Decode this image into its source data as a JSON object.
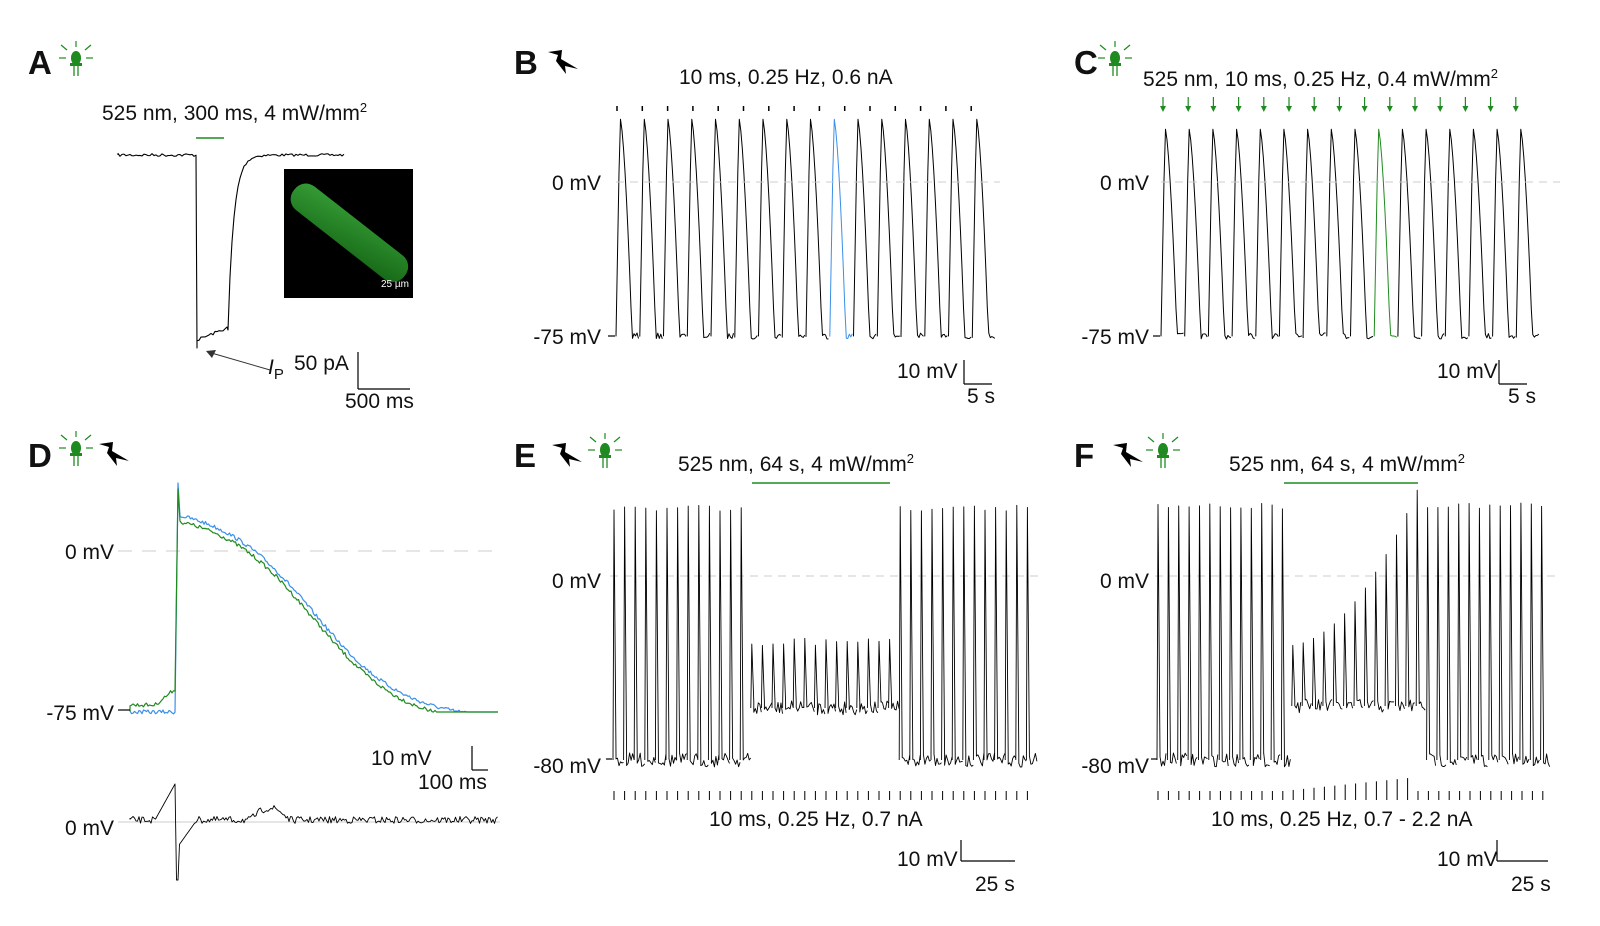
{
  "panels": {
    "A": {
      "letter": "A",
      "stim": "525 nm, 300 ms, 4 mW/mm",
      "stim_sup": "2",
      "current_label": "I",
      "current_sub": "P",
      "scale_y": "50 pA",
      "scale_x": "500 ms",
      "inset_scale": "25 µm"
    },
    "B": {
      "letter": "B",
      "stim": "10 ms, 0.25 Hz, 0.6 nA",
      "y_top": "0 mV",
      "y_bottom": "-75 mV",
      "scale_y": "10 mV",
      "scale_x": "5 s"
    },
    "C": {
      "letter": "C",
      "stim": "525 nm, 10 ms, 0.25 Hz, 0.4 mW/mm",
      "stim_sup": "2",
      "y_top": "0 mV",
      "y_bottom": "-75 mV",
      "scale_y": "10 mV",
      "scale_x": "5 s"
    },
    "D": {
      "letter": "D",
      "y_top": "0 mV",
      "y_bottom": "-75 mV",
      "y_diff": "0 mV",
      "scale_y": "10 mV",
      "scale_x": "100 ms"
    },
    "E": {
      "letter": "E",
      "stim_light": "525 nm, 64 s, 4 mW/mm",
      "stim_sup": "2",
      "stim_elec": "10 ms, 0.25 Hz, 0.7 nA",
      "y_top": "0 mV",
      "y_bottom": "-80 mV",
      "scale_y": "10 mV",
      "scale_x": "25 s"
    },
    "F": {
      "letter": "F",
      "stim_light": "525 nm, 64 s, 4 mW/mm",
      "stim_sup": "2",
      "stim_elec": "10 ms, 0.25 Hz, 0.7 - 2.2 nA",
      "y_top": "0 mV",
      "y_bottom": "-80 mV",
      "scale_y": "10 mV",
      "scale_x": "25 s"
    }
  },
  "colors": {
    "light": "#1f8a1f",
    "electrical_highlight": "#3a8fe8",
    "trace": "#000000"
  },
  "icons": [
    "led-light-icon",
    "lightning-bolt-icon"
  ]
}
